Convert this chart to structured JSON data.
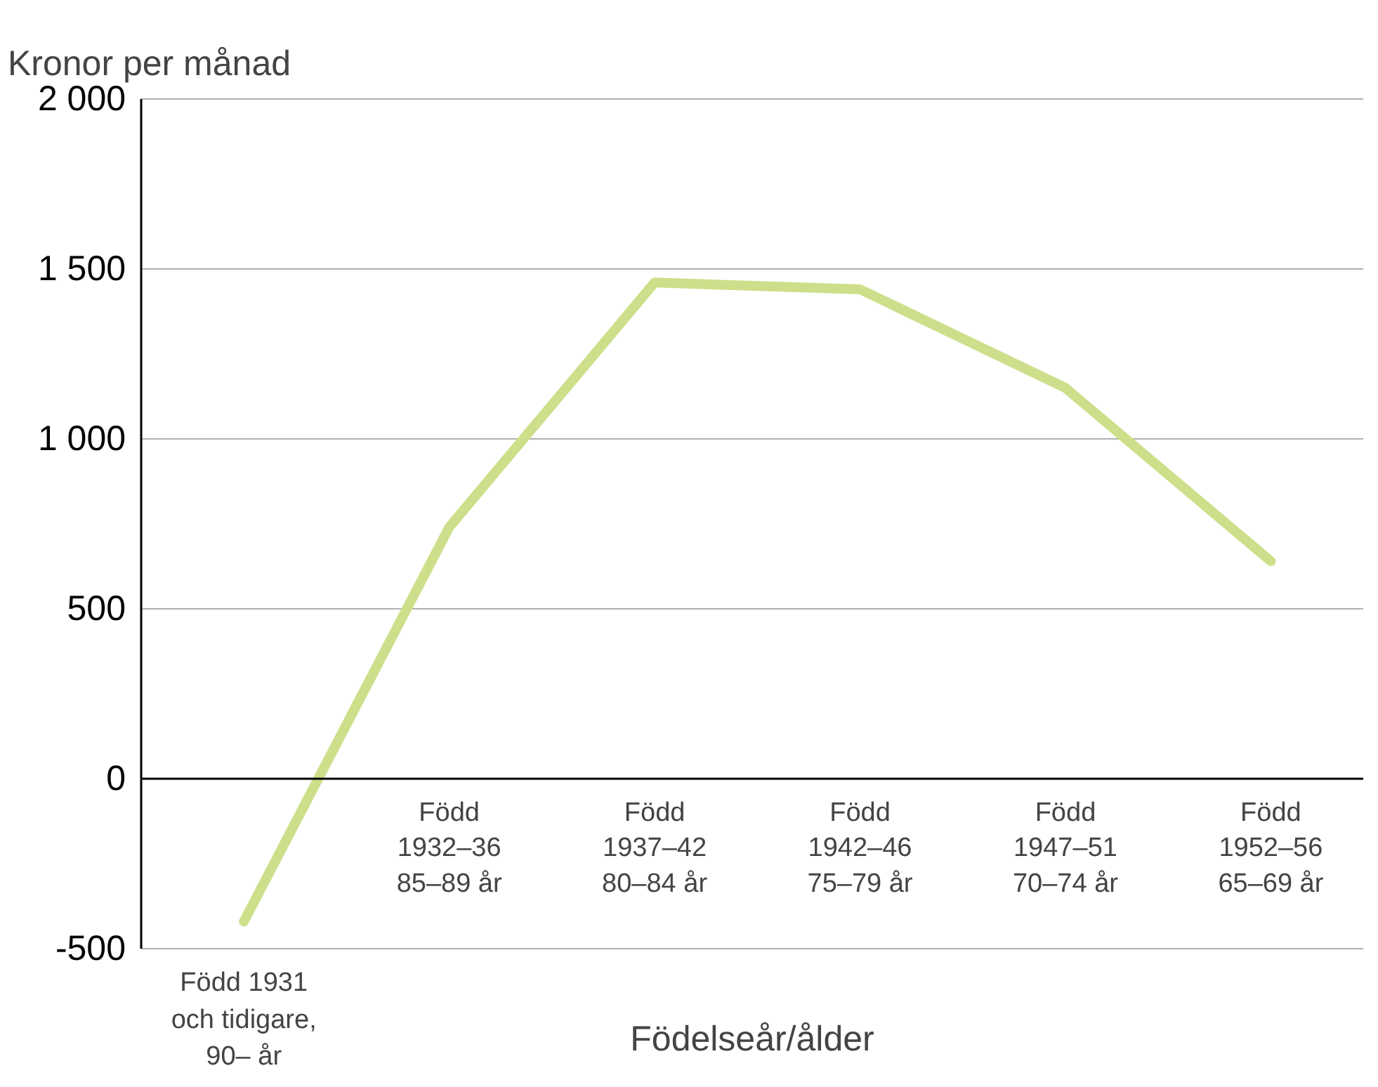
{
  "chart_data": {
    "type": "line",
    "ylabel": "Kronor per månad",
    "xlabel": "Födelseår/ålder",
    "categories": [
      "Född 1931\noch tidigare,\n90– år",
      "Född\n1932–36\n85–89 år",
      "Född\n1937–42\n80–84 år",
      "Född\n1942–46\n75–79 år",
      "Född\n1947–51\n70–74 år",
      "Född\n1952–56\n65–69 år"
    ],
    "series": [
      {
        "color": "#cddf8a",
        "values": [
          -420,
          740,
          1460,
          1440,
          1150,
          640
        ]
      }
    ],
    "ylim": [
      -500,
      2000
    ],
    "yticks": [
      {
        "value": -500,
        "label": "-500"
      },
      0,
      500,
      {
        "value": 1000,
        "label": "1 000"
      },
      {
        "value": 1500,
        "label": "1 500"
      },
      {
        "value": 2000,
        "label": "2 000"
      }
    ],
    "grid": "y",
    "marker": "none",
    "line_style": "solid"
  }
}
